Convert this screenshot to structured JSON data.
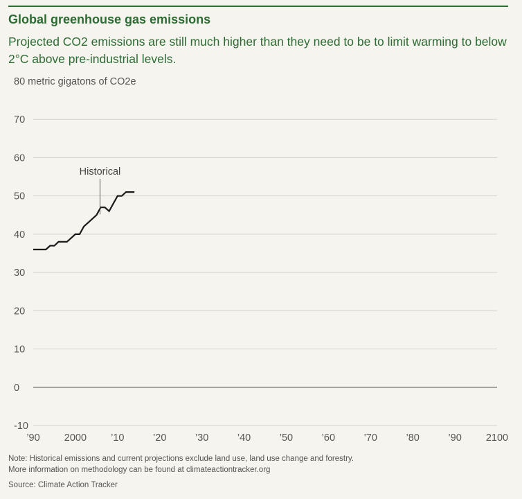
{
  "header": {
    "title": "Global greenhouse gas emissions",
    "subtitle": "Projected CO2 emissions are still much higher than they need to be to limit warming to below 2°C above pre-industrial levels."
  },
  "chart_data": {
    "type": "line",
    "ylabel": "metric gigatons of CO2e",
    "ylim": [
      -10,
      80
    ],
    "yticks": [
      -10,
      0,
      10,
      20,
      30,
      40,
      50,
      60,
      70,
      80
    ],
    "xlim": [
      1990,
      2100
    ],
    "xticks": [
      {
        "value": 1990,
        "label": "’90"
      },
      {
        "value": 2000,
        "label": "2000"
      },
      {
        "value": 2010,
        "label": "’10"
      },
      {
        "value": 2020,
        "label": "’20"
      },
      {
        "value": 2030,
        "label": "’30"
      },
      {
        "value": 2040,
        "label": "’40"
      },
      {
        "value": 2050,
        "label": "’50"
      },
      {
        "value": 2060,
        "label": "’60"
      },
      {
        "value": 2070,
        "label": "’70"
      },
      {
        "value": 2080,
        "label": "’80"
      },
      {
        "value": 2090,
        "label": "’90"
      },
      {
        "value": 2100,
        "label": "2100"
      }
    ],
    "grid": true,
    "series": [
      {
        "name": "Historical",
        "color": "#1a1a1a",
        "label_year": 2006,
        "points": [
          [
            1990,
            36
          ],
          [
            1991,
            36
          ],
          [
            1992,
            36
          ],
          [
            1993,
            36
          ],
          [
            1994,
            37
          ],
          [
            1995,
            37
          ],
          [
            1996,
            38
          ],
          [
            1997,
            38
          ],
          [
            1998,
            38
          ],
          [
            1999,
            39
          ],
          [
            2000,
            40
          ],
          [
            2001,
            40
          ],
          [
            2002,
            42
          ],
          [
            2003,
            43
          ],
          [
            2004,
            44
          ],
          [
            2005,
            45
          ],
          [
            2006,
            47
          ],
          [
            2007,
            47
          ],
          [
            2008,
            46
          ],
          [
            2009,
            48
          ],
          [
            2010,
            50
          ],
          [
            2011,
            50
          ],
          [
            2012,
            51
          ],
          [
            2013,
            51
          ],
          [
            2014,
            51
          ]
        ]
      }
    ],
    "colors": {
      "grid": "#d4d4cc",
      "zero_line": "#666666",
      "axis_text": "#555555"
    }
  },
  "footer": {
    "note_line1": "Note: Historical emissions and current projections exclude land use, land use change and forestry.",
    "note_line2": "More information on methodology can be found at climateactiontracker.org",
    "source": "Source: Climate Action Tracker"
  }
}
